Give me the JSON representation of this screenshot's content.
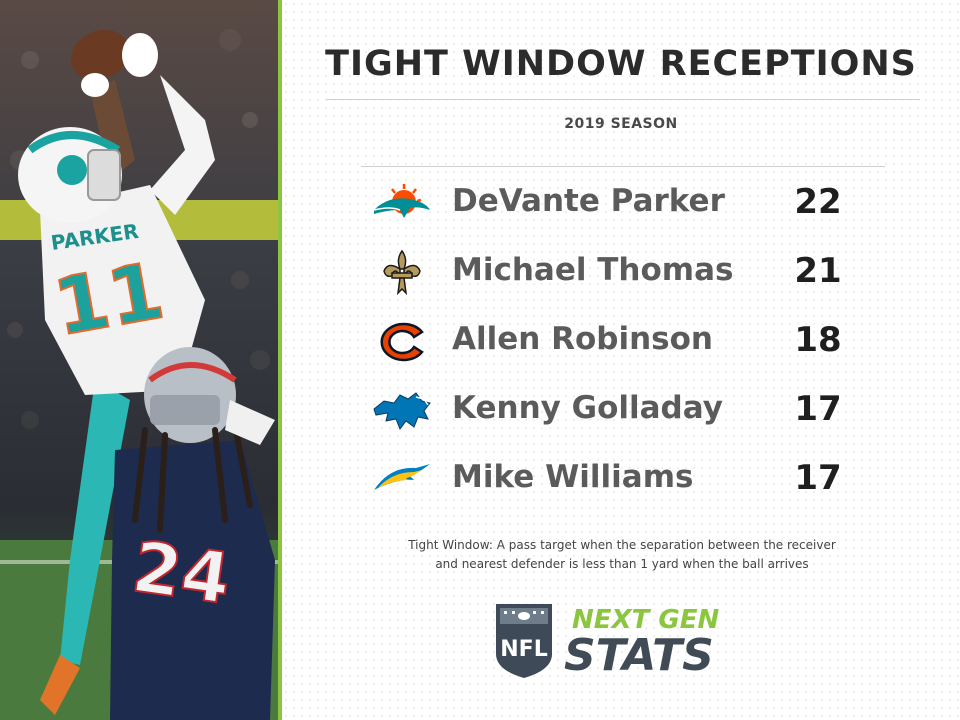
{
  "title": "TIGHT WINDOW RECEPTIONS",
  "subtitle": "2019 SEASON",
  "chart_data": {
    "type": "table",
    "title": "TIGHT WINDOW RECEPTIONS",
    "subtitle": "2019 SEASON",
    "rows": [
      {
        "team_logo": "dolphins-logo",
        "player": "DeVante Parker",
        "value": 22
      },
      {
        "team_logo": "saints-logo",
        "player": "Michael Thomas",
        "value": 21
      },
      {
        "team_logo": "bears-logo",
        "player": "Allen Robinson",
        "value": 18
      },
      {
        "team_logo": "lions-logo",
        "player": "Kenny Golladay",
        "value": 17
      },
      {
        "team_logo": "chargers-logo",
        "player": "Mike Williams",
        "value": 17
      }
    ]
  },
  "footnote": {
    "line1": "Tight Window: A pass target when the separation between the receiver",
    "line2": "and nearest defender is less than 1 yard when the ball arrives"
  },
  "photo": {
    "jersey_name": "PARKER",
    "jersey_number": "11",
    "defender_number": "24"
  },
  "brand": {
    "shield_text": "NFL",
    "line1": "NEXT GEN",
    "line2": "STATS"
  },
  "colors": {
    "accent_green": "#8cc63f",
    "title_text": "#2b2b2b",
    "name_text": "#5b5b5b",
    "value_text": "#1f1f1f",
    "dolphins_aqua": "#008e97",
    "dolphins_orange": "#fc4c02",
    "saints_gold": "#b59a5b",
    "bears_orange": "#e64100",
    "bears_navy": "#0b162a",
    "lions_blue": "#0076b6",
    "chargers_blue": "#0080c6",
    "chargers_gold": "#ffc20e"
  }
}
